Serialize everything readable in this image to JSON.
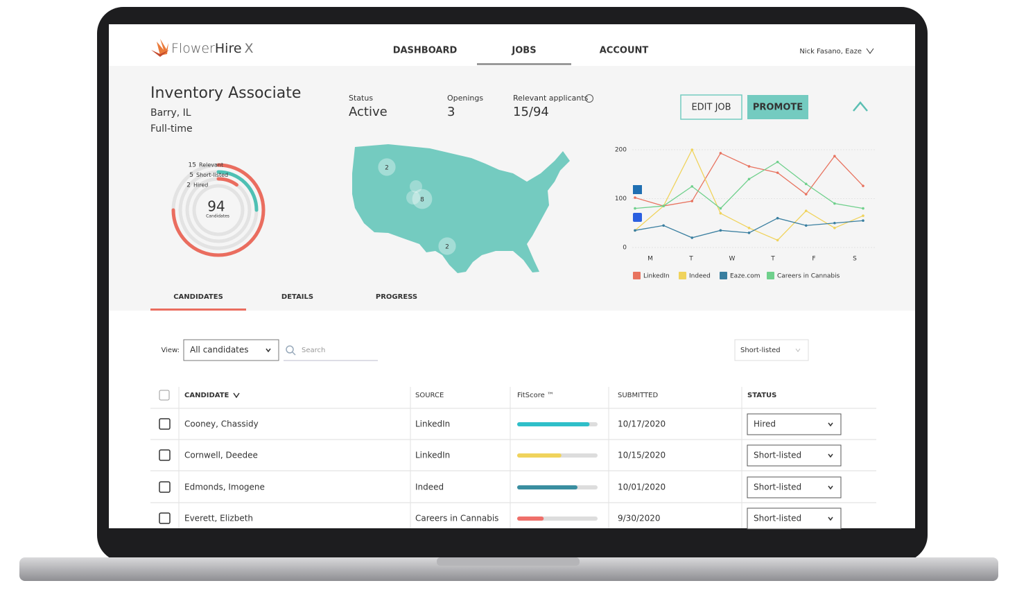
{
  "header": {
    "logo": [
      "Flower",
      "Hire",
      "X"
    ],
    "nav": [
      "DASHBOARD",
      "JOBS",
      "ACCOUNT"
    ],
    "user": "Nick Fasano, Eaze"
  },
  "job": {
    "title": "Inventory Associate",
    "location": "Barry, IL",
    "type": "Full-time",
    "stats": [
      {
        "label": "Status",
        "value": "Active"
      },
      {
        "label": "Openings",
        "value": "3"
      },
      {
        "label": "Relevant applicants",
        "value": "15/94"
      }
    ],
    "buttons": [
      "EDIT JOB",
      "PROMOTE"
    ]
  },
  "funnel": {
    "total": 94,
    "total_label": "Candidates",
    "rings": [
      {
        "value": 15,
        "label": "Relevant",
        "color": "#ea6d5f"
      },
      {
        "value": 5,
        "label": "Short-listed",
        "color": "#4ec0b4"
      },
      {
        "value": 2,
        "label": "Hired",
        "color": "#ea6d5f"
      }
    ]
  },
  "map": {
    "color": "#74cbc0",
    "bubbles": [
      2,
      8,
      2
    ]
  },
  "activity_chart": {
    "type": "line",
    "ylim": [
      0,
      200
    ],
    "yticks": [
      0,
      100,
      200
    ],
    "xlabels": [
      "M",
      "T",
      "W",
      "T",
      "F",
      "S"
    ],
    "series": [
      {
        "name": "LinkedIn",
        "color": "#e8735f",
        "values": [
          102,
          85,
          95,
          193,
          166,
          153,
          109,
          187,
          126
        ]
      },
      {
        "name": "Indeed",
        "color": "#f0d35c",
        "values": [
          35,
          85,
          200,
          70,
          40,
          15,
          75,
          40,
          65
        ]
      },
      {
        "name": "Eaze.com",
        "color": "#3a7fa0",
        "values": [
          35,
          45,
          20,
          35,
          30,
          60,
          45,
          50,
          55
        ]
      },
      {
        "name": "Careers in Cannabis",
        "color": "#6fd08c",
        "values": [
          80,
          85,
          125,
          80,
          140,
          175,
          130,
          90,
          80
        ]
      }
    ]
  },
  "tabs": [
    "CANDIDATES",
    "DETAILS",
    "PROGRESS"
  ],
  "filters": {
    "view_label": "View:",
    "view": "All candidates",
    "search": "Search",
    "status_filter": "Short-listed"
  },
  "table": {
    "columns": [
      "CANDIDATE",
      "SOURCE",
      "FitScore ™",
      "SUBMITTED",
      "STATUS"
    ],
    "fitscore_lim": [
      0,
      100
    ],
    "rows": [
      {
        "name": "Cooney, Chassidy",
        "source": "LinkedIn",
        "fitscore": 90,
        "color": "#2fbfc9",
        "submitted": "10/17/2020",
        "status": "Hired"
      },
      {
        "name": "Cornwell, Deedee",
        "source": "LinkedIn",
        "fitscore": 55,
        "color": "#f0d35c",
        "submitted": "10/15/2020",
        "status": "Short-listed"
      },
      {
        "name": "Edmonds, Imogene",
        "source": "Indeed",
        "fitscore": 75,
        "color": "#3a8ea0",
        "submitted": "10/01/2020",
        "status": "Short-listed"
      },
      {
        "name": "Everett, Elizbeth",
        "source": "Careers in Cannabis",
        "fitscore": 33,
        "color": "#ef6f6a",
        "submitted": "9/30/2020",
        "status": "Short-listed"
      }
    ]
  }
}
